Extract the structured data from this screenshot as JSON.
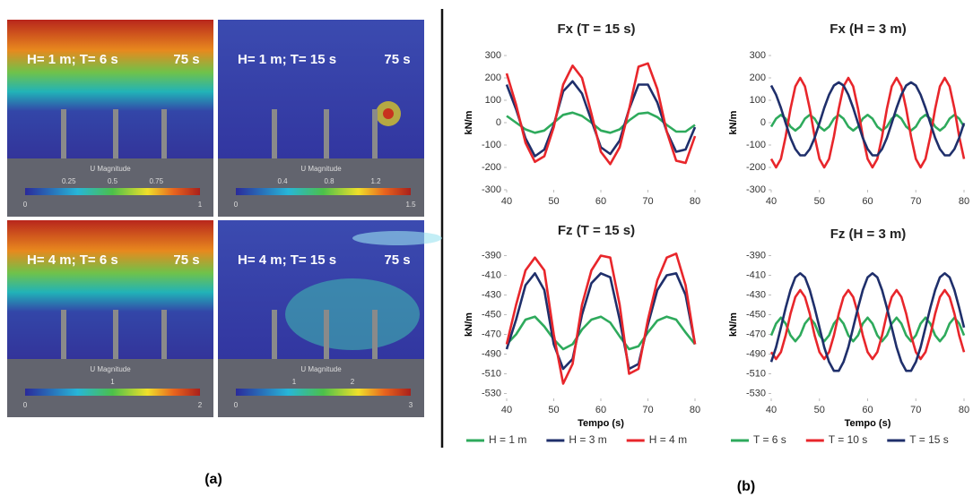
{
  "panel_a": {
    "caption": "(a)",
    "images": [
      {
        "label": "H= 1 m; T= 6 s",
        "time": "75 s",
        "colorbar_title": "U Magnitude",
        "ticks": [
          0.25,
          0.5,
          0.75
        ],
        "range": [
          0,
          1
        ]
      },
      {
        "label": "H= 1 m; T= 15 s",
        "time": "75 s",
        "colorbar_title": "U Magnitude",
        "ticks": [
          0.4,
          0.8,
          1.2
        ],
        "range": [
          0,
          1.5
        ]
      },
      {
        "label": "H= 4 m; T= 6 s",
        "time": "75 s",
        "colorbar_title": "U Magnitude",
        "ticks": [
          1
        ],
        "range": [
          0,
          2
        ]
      },
      {
        "label": "H= 4 m; T= 15 s",
        "time": "75 s",
        "colorbar_title": "U Magnitude",
        "ticks": [
          1,
          2
        ],
        "range": [
          0,
          3
        ]
      }
    ]
  },
  "panel_b": {
    "caption": "(b)"
  },
  "chart_data": [
    {
      "type": "line",
      "title": "Fx (T = 15 s)",
      "ylabel": "kN/m",
      "x": [
        40,
        42,
        44,
        46,
        48,
        50,
        52,
        54,
        56,
        58,
        60,
        62,
        64,
        66,
        68,
        70,
        72,
        74,
        76,
        78,
        80
      ],
      "xlim": [
        40,
        80
      ],
      "xticks": [
        40,
        50,
        60,
        70,
        80
      ],
      "ylim": [
        -300,
        300
      ],
      "yticks": [
        300,
        200,
        100,
        0,
        -100,
        -200,
        -300
      ],
      "grid": false,
      "series": [
        {
          "color": "#2eaa5c",
          "values": [
            30,
            0,
            -30,
            -45,
            -35,
            0,
            35,
            45,
            30,
            0,
            -35,
            -45,
            -30,
            10,
            40,
            45,
            25,
            -10,
            -40,
            -40,
            -10
          ]
        },
        {
          "color": "#1f2f6b",
          "values": [
            170,
            60,
            -70,
            -150,
            -120,
            -10,
            140,
            185,
            130,
            10,
            -110,
            -140,
            -80,
            60,
            170,
            170,
            90,
            -40,
            -130,
            -120,
            -20
          ]
        },
        {
          "color": "#e8262b",
          "values": [
            220,
            80,
            -90,
            -175,
            -150,
            -20,
            170,
            255,
            200,
            40,
            -130,
            -185,
            -110,
            60,
            250,
            265,
            150,
            -40,
            -170,
            -180,
            -60
          ]
        }
      ]
    },
    {
      "type": "line",
      "title": "Fx (H = 3 m)",
      "ylabel": "kN/m",
      "x": [
        40,
        41,
        42,
        43,
        44,
        45,
        46,
        47,
        48,
        49,
        50,
        51,
        52,
        53,
        54,
        55,
        56,
        57,
        58,
        59,
        60,
        61,
        62,
        63,
        64,
        65,
        66,
        67,
        68,
        69,
        70,
        71,
        72,
        73,
        74,
        75,
        76,
        77,
        78,
        79,
        80
      ],
      "xlim": [
        40,
        80
      ],
      "xticks": [
        40,
        50,
        60,
        70,
        80
      ],
      "ylim": [
        -300,
        300
      ],
      "yticks": [
        300,
        200,
        100,
        0,
        -100,
        -200,
        -300
      ],
      "grid": false,
      "series": [
        {
          "color": "#2eaa5c",
          "values": [
            -18,
            18,
            35,
            18,
            -18,
            -35,
            -18,
            18,
            35,
            18,
            -18,
            -35,
            -18,
            18,
            35,
            18,
            -18,
            -35,
            -18,
            18,
            35,
            18,
            -18,
            -35,
            -18,
            18,
            35,
            18,
            -18,
            -35,
            -18,
            18,
            35,
            18,
            -18,
            -35,
            -18,
            18,
            35,
            18,
            -18
          ]
        },
        {
          "color": "#e8262b",
          "values": [
            -162,
            -200,
            -162,
            -62,
            62,
            162,
            200,
            162,
            62,
            -62,
            -162,
            -200,
            -162,
            -62,
            62,
            162,
            200,
            162,
            62,
            -62,
            -162,
            -200,
            -162,
            -62,
            62,
            162,
            200,
            162,
            62,
            -62,
            -162,
            -200,
            -162,
            -62,
            62,
            162,
            200,
            162,
            62,
            -62,
            -162
          ]
        },
        {
          "color": "#1f2f6b",
          "values": [
            166,
            125,
            66,
            -2,
            -68,
            -118,
            -146,
            -146,
            -118,
            -68,
            -2,
            66,
            125,
            166,
            180,
            166,
            125,
            66,
            -2,
            -68,
            -118,
            -146,
            -146,
            -118,
            -68,
            -2,
            66,
            125,
            166,
            180,
            166,
            125,
            66,
            -2,
            -68,
            -118,
            -146,
            -146,
            -118,
            -68,
            -2
          ]
        }
      ]
    },
    {
      "type": "line",
      "title": "Fz (T = 15 s)",
      "ylabel": "kN/m",
      "xlabel": "Tempo (s)",
      "x": [
        40,
        42,
        44,
        46,
        48,
        50,
        52,
        54,
        56,
        58,
        60,
        62,
        64,
        66,
        68,
        70,
        72,
        74,
        76,
        78,
        80
      ],
      "xlim": [
        40,
        80
      ],
      "xticks": [
        40,
        50,
        60,
        70,
        80
      ],
      "ylim": [
        -535,
        -385
      ],
      "yticks": [
        -390,
        -410,
        -430,
        -450,
        -470,
        -490,
        -510,
        -530
      ],
      "grid": false,
      "legend": "bottom",
      "series": [
        {
          "name": "H = 1 m",
          "color": "#2eaa5c",
          "values": [
            -480,
            -470,
            -455,
            -452,
            -462,
            -475,
            -485,
            -480,
            -465,
            -455,
            -452,
            -458,
            -472,
            -485,
            -482,
            -468,
            -456,
            -452,
            -455,
            -468,
            -480
          ]
        },
        {
          "name": "H = 3 m",
          "color": "#1f2f6b",
          "values": [
            -485,
            -455,
            -420,
            -408,
            -425,
            -480,
            -505,
            -495,
            -450,
            -418,
            -408,
            -412,
            -455,
            -505,
            -500,
            -460,
            -425,
            -410,
            -408,
            -430,
            -480
          ]
        },
        {
          "name": "H = 4 m",
          "color": "#e8262b",
          "values": [
            -480,
            -440,
            -405,
            -392,
            -405,
            -470,
            -520,
            -500,
            -440,
            -405,
            -390,
            -392,
            -440,
            -510,
            -505,
            -455,
            -415,
            -392,
            -388,
            -420,
            -480
          ]
        }
      ]
    },
    {
      "type": "line",
      "title": "Fz (H = 3 m)",
      "ylabel": "kN/m",
      "xlabel": "Tempo (s)",
      "x": [
        40,
        41,
        42,
        43,
        44,
        45,
        46,
        47,
        48,
        49,
        50,
        51,
        52,
        53,
        54,
        55,
        56,
        57,
        58,
        59,
        60,
        61,
        62,
        63,
        64,
        65,
        66,
        67,
        68,
        69,
        70,
        71,
        72,
        73,
        74,
        75,
        76,
        77,
        78,
        79,
        80
      ],
      "xlim": [
        40,
        80
      ],
      "xticks": [
        40,
        50,
        60,
        70,
        80
      ],
      "ylim": [
        -535,
        -385
      ],
      "yticks": [
        -390,
        -410,
        -430,
        -450,
        -470,
        -490,
        -510,
        -530
      ],
      "grid": false,
      "legend": "bottom",
      "series": [
        {
          "name": "T = 6 s",
          "color": "#2eaa5c",
          "values": [
            -471,
            -459,
            -453,
            -459,
            -471,
            -477,
            -471,
            -459,
            -453,
            -459,
            -471,
            -477,
            -471,
            -459,
            -453,
            -459,
            -471,
            -477,
            -471,
            -459,
            -453,
            -459,
            -471,
            -477,
            -471,
            -459,
            -453,
            -459,
            -471,
            -477,
            -471,
            -459,
            -453,
            -459,
            -471,
            -477,
            -471,
            -459,
            -453,
            -459,
            -471
          ]
        },
        {
          "name": "T = 10 s",
          "color": "#e8262b",
          "values": [
            -488,
            -495,
            -488,
            -471,
            -449,
            -432,
            -425,
            -432,
            -449,
            -471,
            -488,
            -495,
            -488,
            -471,
            -449,
            -432,
            -425,
            -432,
            -449,
            -471,
            -488,
            -495,
            -488,
            -471,
            -449,
            -432,
            -425,
            -432,
            -449,
            -471,
            -488,
            -495,
            -488,
            -471,
            -449,
            -432,
            -425,
            -432,
            -449,
            -471,
            -488
          ]
        },
        {
          "name": "T = 15 s",
          "color": "#1f2f6b",
          "values": [
            -498,
            -483,
            -463,
            -443,
            -425,
            -412,
            -408,
            -412,
            -425,
            -443,
            -463,
            -483,
            -498,
            -507,
            -507,
            -498,
            -483,
            -463,
            -443,
            -425,
            -412,
            -408,
            -412,
            -425,
            -443,
            -463,
            -483,
            -498,
            -507,
            -507,
            -498,
            -483,
            -463,
            -443,
            -425,
            -412,
            -408,
            -412,
            -425,
            -443,
            -463
          ]
        }
      ]
    }
  ]
}
